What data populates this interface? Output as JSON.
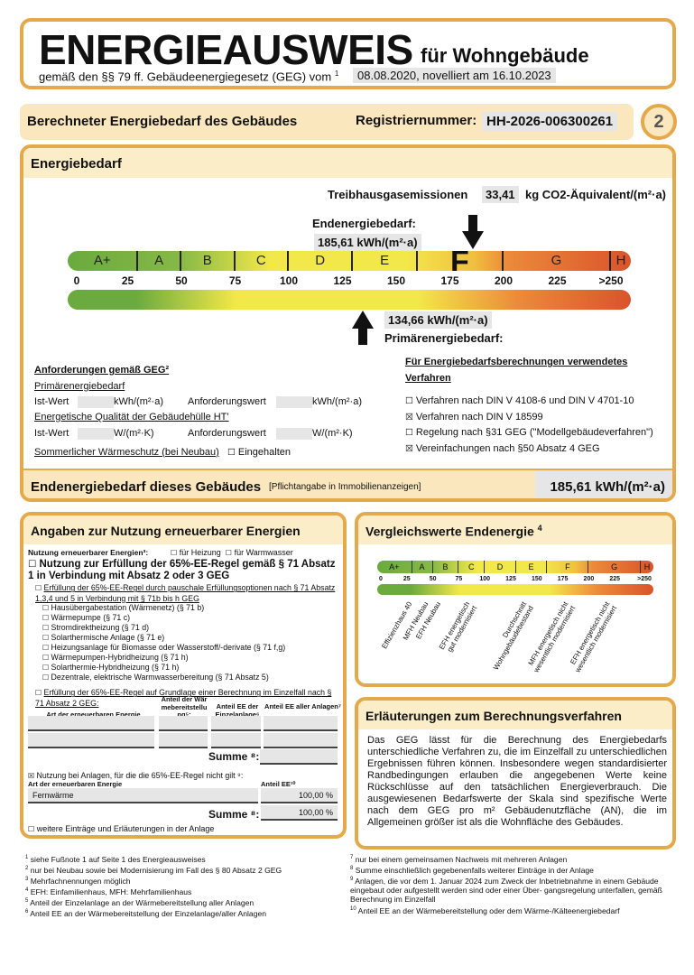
{
  "header": {
    "title": "ENERGIEAUSWEIS",
    "title_suffix": "für Wohngebäude",
    "subtitle": "gemäß den §§ 79 ff. Gebäudeenergiegesetz (GEG) vom",
    "subtitle_footnote": "1",
    "date": "08.08.2020, novelliert am 16.10.2023"
  },
  "bar": {
    "label": "Berechneter Energiebedarf des Gebäudes",
    "reg_label": "Registriernummer:",
    "reg_number": "HH-2026-006300261",
    "page_number": "2"
  },
  "energiebedarf": {
    "title": "Energiebedarf",
    "ghg_label": "Treibhausgasemissionen",
    "ghg_value": "33,41",
    "ghg_unit": "kg CO2-Äquivalent/(m²·a)",
    "end_label": "Endenergiebedarf:",
    "end_value": "185,61 kWh/(m²·a)",
    "end_numeric": 185.61,
    "primary_value": "134,66 kWh/(m²·a)",
    "primary_label": "Primärenergiebedarf:",
    "primary_numeric": 134.66,
    "efficiency_class": "F",
    "classes": [
      "A+",
      "A",
      "B",
      "C",
      "D",
      "E",
      "F",
      "G",
      "H"
    ],
    "ticks": [
      "0",
      "25",
      "50",
      "75",
      "100",
      "125",
      "150",
      "175",
      "200",
      "225",
      ">250"
    ],
    "colors": {
      "green": "#6aaa3e",
      "yellow": "#f3e84a",
      "orange": "#ec9a3a",
      "red": "#d9542b"
    }
  },
  "requirements": {
    "title": "Anforderungen gemäß GEG²",
    "primary_title": "Primärenergiebedarf",
    "ist": "Ist-Wert",
    "unit1": "kWh/(m²·a)",
    "anf": "Anforderungswert",
    "unit2": "kWh/(m²·a)",
    "ht_title": "Energetische Qualität der Gebäudehülle HT'",
    "ist2": "Ist-Wert",
    "unit3": "W/(m²·K)",
    "anf2": "Anforderungswert",
    "unit4": "W/(m²·K)",
    "summer": "Sommerlicher Wärmeschutz (bei Neubau)",
    "summer_check": "Eingehalten",
    "summer_checked": false
  },
  "methods": {
    "title": "Für Energiebedarfsberechnungen verwendetes Verfahren",
    "items": [
      {
        "label": "Verfahren nach DIN V 4108-6 und DIN V 4701-10",
        "checked": false
      },
      {
        "label": "Verfahren nach DIN V 18599",
        "checked": true
      },
      {
        "label": "Regelung nach §31 GEG (\"Modellgebäudeverfahren\")",
        "checked": false
      },
      {
        "label": "Vereinfachungen nach §50 Absatz 4 GEG",
        "checked": true
      }
    ]
  },
  "final": {
    "label": "Endenergiebedarf dieses Gebäudes",
    "note": "[Pflichtangabe in Immobilienanzeigen]",
    "value": "185,61 kWh/(m²·a)"
  },
  "renewables": {
    "title": "Angaben zur Nutzung erneuerbarer Energien",
    "usage_label": "Nutzung erneuerbarer Energien³:",
    "heating": "für Heizung",
    "hot_water": "für Warmwasser",
    "rule65": "Nutzung zur Erfüllung der 65%-EE-Regel gemäß § 71 Absatz 1 in Verbindung mit Absatz 2 oder 3 GEG",
    "flat_option": "Erfüllung der 65%-EE-Regel durch pauschale Erfüllungsoptionen nach § 71 Absatz 1,3,4 und 5 in Verbindung mit § 71b bis h GEG",
    "options": [
      "Hausübergabestation (Wärmenetz) (§ 71 b)",
      "Wärmepumpe (§ 71 c)",
      "Stromdirektheizung (§ 71 d)",
      "Solarthermische Anlage (§ 71 e)",
      "Heizungsanlage für Biomasse oder Wasserstoff/-derivate (§ 71 f,g)",
      "Wärmepumpen-Hybridheizung (§ 71 h)",
      "Solarthermie-Hybridheizung (§ 71 h)",
      "Dezentrale, elektrische Warmwasserbereitung (§ 71 Absatz 5)"
    ],
    "calc_option": "Erfüllung der 65%-EE-Regel auf Grundlage einer Berechnung im Einzelfall nach § 71 Absatz 2 GEG:",
    "table_headers": [
      "Art der erneuerbaren Energie",
      "Anteil der Wärmebereitstellung⁵:",
      "Anteil EE der Einzelanlage⁶",
      "Anteil EE aller Anlagen⁷"
    ],
    "sum_label": "Summe ⁸:",
    "nonrule_label": "Nutzung bei Anlagen, für die die 65%-EE-Regel nicht gilt ⁹:",
    "nonrule_checked": true,
    "nonrule_headers": [
      "Art der erneuerbaren Energie",
      "Anteil EE¹⁰"
    ],
    "nonrule_rows": [
      {
        "type": "Fernwärme",
        "share": "100,00 %"
      }
    ],
    "nonrule_sum": "100,00 %",
    "more": "weitere Einträge und Erläuterungen in der Anlage"
  },
  "comparison": {
    "title": "Vergleichswerte Endenergie",
    "title_sup": "4",
    "classes": [
      "A+",
      "A",
      "B",
      "C",
      "D",
      "E",
      "F",
      "G",
      "H"
    ],
    "ticks": [
      "0",
      "25",
      "50",
      "75",
      "100",
      "125",
      "150",
      "175",
      "200",
      "225",
      ">250"
    ],
    "references": [
      "Effizienzhaus 40",
      "MFH Neubau",
      "EFH Neubau",
      "EFH energetisch gut modernisiert",
      "Durchschnitt Wohngebäudebestand",
      "MFH energetisch nicht wesentlich modernisiert",
      "EFH energetisch nicht wesentlich modernisiert"
    ]
  },
  "explanation": {
    "title": "Erläuterungen zum Berechnungsverfahren",
    "text": "Das GEG lässt für die Berechnung des Energiebedarfs unterschiedliche Verfahren zu, die im Einzelfall zu unterschiedlichen Ergebnissen führen können. Insbesondere wegen standardisierter Randbedingungen erlauben die angegebenen Werte keine Rückschlüsse auf den tatsächlichen Energieverbrauch. Die ausgewiesenen Bedarfswerte der Skala sind spezifische Werte nach dem GEG pro m² Gebäudenutzfläche (AN), die im Allgemeinen größer ist als die Wohnfläche des Gebäudes."
  },
  "footnotes_left": [
    [
      "1",
      "siehe Fußnote 1 auf Seite 1 des Energieausweises"
    ],
    [
      "2",
      "nur bei Neubau sowie bei Modernisierung im Fall des § 80 Absatz 2 GEG"
    ],
    [
      "3",
      "Mehrfachnennungen möglich"
    ],
    [
      "4",
      "EFH: Einfamilienhaus, MFH: Mehrfamilienhaus"
    ],
    [
      "5",
      "Anteil der Einzelanlage an der Wärmebereitstellung aller Anlagen"
    ],
    [
      "6",
      "Anteil EE an der Wärmebereitstellung der Einzelanlage/aller Anlagen"
    ]
  ],
  "footnotes_right": [
    [
      "7",
      "nur bei einem gemeinsamen Nachweis mit mehreren Anlagen"
    ],
    [
      "8",
      "Summe einschließlich gegebenenfalls weiterer Einträge in der Anlage"
    ],
    [
      "9",
      "Anlagen, die vor dem 1. Januar 2024 zum Zweck der Inbetriebnahme in einem Gebäude eingebaut oder aufgestellt werden sind oder einer Über- gangsregelung unterfallen, gemäß Berechnung im Einzelfall"
    ],
    [
      "10",
      "Anteil EE an der Wärmebereitstellung oder dem Wärme-/Kälteenergiebedarf"
    ]
  ]
}
